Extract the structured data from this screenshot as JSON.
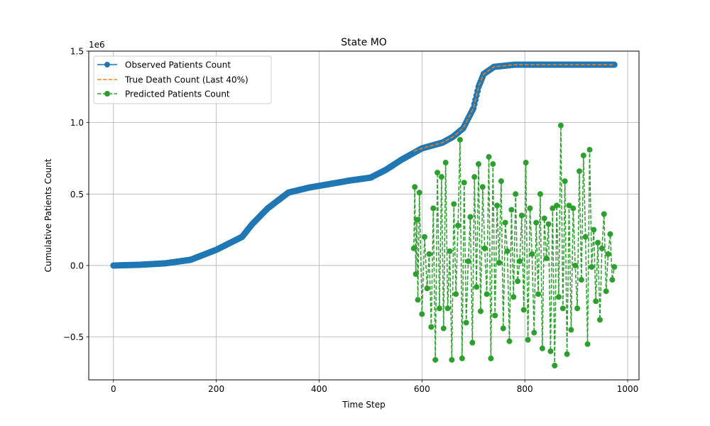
{
  "chart_data": {
    "type": "line",
    "title": "State MO",
    "xlabel": "Time Step",
    "ylabel": "Cumulative Patients Count",
    "y_offset_label": "1e6",
    "xlim": [
      -48,
      1022
    ],
    "ylim": [
      -0.8,
      1.5
    ],
    "x_ticks": [
      0,
      200,
      400,
      600,
      800,
      1000
    ],
    "x_tick_labels": [
      "0",
      "200",
      "400",
      "600",
      "800",
      "1000"
    ],
    "y_ticks": [
      -0.5,
      0.0,
      0.5,
      1.0,
      1.5
    ],
    "y_tick_labels": [
      "−0.5",
      "0.0",
      "0.5",
      "1.0",
      "1.5"
    ],
    "grid": true,
    "legend_position": "top-left",
    "colors": {
      "observed": "#1f77b4",
      "true": "#ff7f0e",
      "predicted": "#2ca02c"
    },
    "series": [
      {
        "name": "Observed Patients Count",
        "style": "solid-marker",
        "x": [
          0,
          50,
          100,
          150,
          200,
          250,
          270,
          300,
          340,
          380,
          420,
          460,
          500,
          530,
          560,
          600,
          640,
          660,
          680,
          700,
          710,
          720,
          740,
          780,
          850,
          974
        ],
        "values": [
          0.0,
          0.005,
          0.015,
          0.04,
          0.11,
          0.2,
          0.29,
          0.4,
          0.51,
          0.545,
          0.57,
          0.595,
          0.615,
          0.67,
          0.74,
          0.82,
          0.86,
          0.9,
          0.96,
          1.1,
          1.25,
          1.34,
          1.39,
          1.405,
          1.405,
          1.405
        ]
      },
      {
        "name": "True Death Count (Last 40%)",
        "style": "dashed",
        "x": [
          584,
          600,
          620,
          640,
          660,
          680,
          700,
          710,
          720,
          740,
          780,
          850,
          974
        ],
        "values": [
          0.8,
          0.82,
          0.84,
          0.86,
          0.9,
          0.96,
          1.1,
          1.25,
          1.34,
          1.39,
          1.405,
          1.405,
          1.405
        ]
      },
      {
        "name": "Predicted Patients Count",
        "style": "dashed-marker",
        "x": [
          584,
          586,
          588,
          590,
          592,
          595,
          600,
          605,
          610,
          614,
          618,
          622,
          626,
          630,
          634,
          638,
          642,
          646,
          650,
          654,
          658,
          662,
          666,
          670,
          674,
          678,
          682,
          686,
          690,
          694,
          698,
          702,
          706,
          710,
          714,
          718,
          722,
          726,
          730,
          734,
          738,
          742,
          746,
          750,
          754,
          758,
          762,
          766,
          770,
          774,
          778,
          782,
          786,
          790,
          794,
          798,
          802,
          806,
          810,
          814,
          818,
          822,
          826,
          830,
          834,
          838,
          842,
          846,
          850,
          854,
          858,
          862,
          866,
          870,
          874,
          878,
          882,
          886,
          890,
          894,
          898,
          902,
          906,
          910,
          914,
          918,
          922,
          926,
          930,
          934,
          938,
          942,
          946,
          950,
          954,
          958,
          962,
          966,
          970,
          974
        ],
        "values": [
          0.12,
          0.55,
          -0.06,
          0.32,
          -0.24,
          0.51,
          -0.34,
          0.2,
          -0.16,
          0.08,
          -0.43,
          0.4,
          -0.66,
          0.65,
          -0.3,
          0.62,
          -0.44,
          0.72,
          -0.3,
          0.1,
          -0.66,
          0.43,
          -0.2,
          0.28,
          0.88,
          -0.65,
          0.58,
          -0.4,
          0.03,
          0.34,
          -0.54,
          0.62,
          -0.15,
          0.71,
          -0.32,
          0.55,
          0.12,
          -0.2,
          0.76,
          -0.65,
          0.71,
          -0.35,
          0.42,
          0.02,
          0.59,
          -0.44,
          0.3,
          0.1,
          -0.53,
          0.39,
          -0.22,
          0.5,
          -0.11,
          0.03,
          0.35,
          -0.31,
          0.72,
          -0.52,
          0.4,
          0.08,
          -0.47,
          0.3,
          -0.2,
          0.5,
          -0.58,
          0.33,
          0.05,
          0.29,
          -0.6,
          0.4,
          -0.7,
          0.42,
          -0.22,
          0.98,
          -0.3,
          0.59,
          -0.62,
          0.42,
          -0.45,
          0.4,
          0.0,
          -0.3,
          0.66,
          -0.1,
          0.77,
          0.2,
          -0.55,
          0.81,
          -0.01,
          0.25,
          -0.25,
          0.16,
          -0.38,
          0.12,
          0.36,
          -0.18,
          0.08,
          0.22,
          -0.1,
          -0.01
        ]
      }
    ]
  }
}
